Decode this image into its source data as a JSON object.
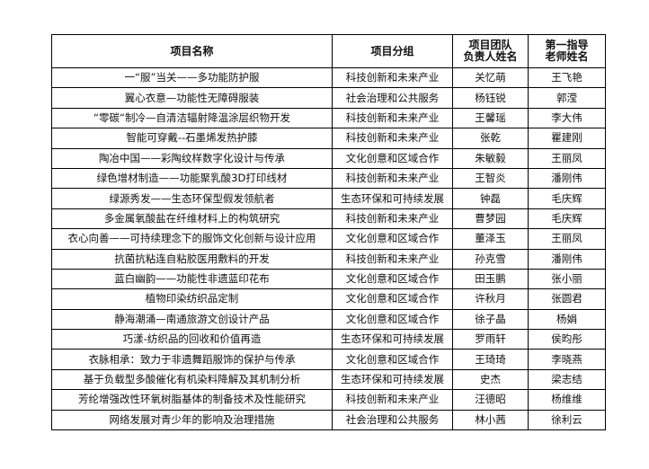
{
  "table": {
    "headers": [
      "项目名称",
      "项目分组",
      "项目团队\n负责人姓名",
      "第一指导\n老师姓名"
    ],
    "header_lines": [
      [
        "项目名称"
      ],
      [
        "项目分组"
      ],
      [
        "项目团队",
        "负责人姓名"
      ],
      [
        "第一指导",
        "老师姓名"
      ]
    ],
    "rows": [
      [
        "一“服”当关——多功能防护服",
        "科技创新和未来产业",
        "关忆萌",
        "王飞艳"
      ],
      [
        "翼心衣意—功能性无障碍服装",
        "社会治理和公共服务",
        "杨钰锐",
        "郭滢"
      ],
      [
        "“零碳“制冷—自清洁辐射降温涂层织物开发",
        "科技创新和未来产业",
        "王馨瑶",
        "李大伟"
      ],
      [
        "智能可穿戴--石墨烯发热护膝",
        "科技创新和未来产业",
        "张乾",
        "瞿建刚"
      ],
      [
        "陶冶中国——彩陶纹样数字化设计与传承",
        "文化创意和区域合作",
        "朱敏毅",
        "王丽凤"
      ],
      [
        "绿色增材制造——功能聚乳酸3D打印线材",
        "科技创新和未来产业",
        "王智炎",
        "潘刚伟"
      ],
      [
        "绿源秀发——生态环保型假发领航者",
        "生态环保和可持续发展",
        "钟磊",
        "毛庆辉"
      ],
      [
        "多金属氧酸盐在纤维材料上的构筑研究",
        "科技创新和未来产业",
        "曹梦园",
        "毛庆辉"
      ],
      [
        "衣心向善——可持续理念下的服饰文化创新与设计应用",
        "文化创意和区域合作",
        "董泽玉",
        "王丽凤"
      ],
      [
        "抗菌抗粘连自粘胶医用敷料的开发",
        "科技创新和未来产业",
        "孙克雪",
        "潘刚伟"
      ],
      [
        "蓝白幽韵——功能性非遗蓝印花布",
        "文化创意和区域合作",
        "田玉鹏",
        "张小丽"
      ],
      [
        "植物印染纺织品定制",
        "文化创意和区域合作",
        "许秋月",
        "张圆君"
      ],
      [
        "静海潮涌—南通旅游文创设计产品",
        "文化创意和区域合作",
        "徐子晶",
        "杨娟"
      ],
      [
        "巧漾-纺织品的回收和价值再造",
        "生态环保和可持续发展",
        "罗雨轩",
        "侯昀彤"
      ],
      [
        "衣脉相承：致力于非遗舞蹈服饰的保护与传承",
        "文化创意和区域合作",
        "王琦琦",
        "李晓燕"
      ],
      [
        "基于负载型多酸催化有机染料降解及其机制分析",
        "生态环保和可持续发展",
        "史杰",
        "梁志结"
      ],
      [
        "芳纶增强改性环氧树脂基体的制备技术及性能研究",
        "科技创新和未来产业",
        "汪德昭",
        "杨维维"
      ],
      [
        "网络发展对青少年的影响及治理措施",
        "社会治理和公共服务",
        "林小茜",
        "徐利云"
      ]
    ]
  }
}
